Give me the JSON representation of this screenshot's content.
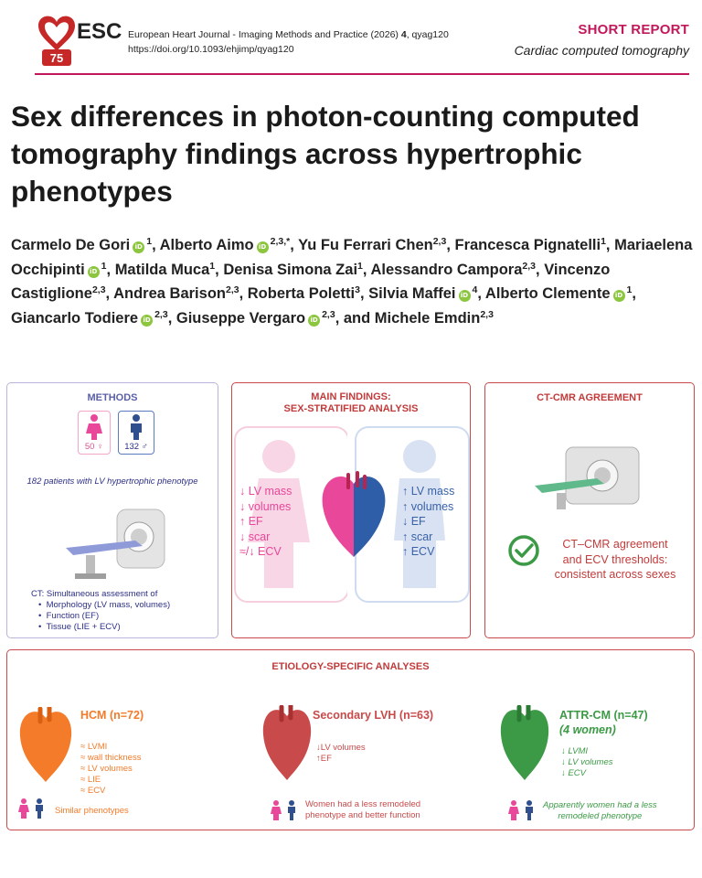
{
  "header": {
    "logo_text": "ESC",
    "logo_badge": "75",
    "journal": "European Heart Journal - Imaging Methods and Practice (2026)",
    "volume": "4",
    "article_id": ", qyag120",
    "doi": "https://doi.org/10.1093/ehjimp/qyag120",
    "report_type": "SHORT REPORT",
    "section": "Cardiac computed tomography",
    "accent_color": "#c2185b"
  },
  "title": "Sex differences in photon-counting computed tomography findings across hypertrophic phenotypes",
  "authors": [
    {
      "name": "Carmelo De Gori",
      "orcid": true,
      "aff": "1",
      "sep": ", "
    },
    {
      "name": "Alberto Aimo",
      "orcid": true,
      "aff": "2,3,*",
      "sep": ", "
    },
    {
      "name": "Yu Fu Ferrari Chen",
      "orcid": false,
      "aff": "2,3",
      "sep": ", "
    },
    {
      "name": "Francesca Pignatelli",
      "orcid": false,
      "aff": "1",
      "sep": ", "
    },
    {
      "name": "Mariaelena Occhipinti",
      "orcid": true,
      "aff": "1",
      "sep": ", "
    },
    {
      "name": "Matilda Muca",
      "orcid": false,
      "aff": "1",
      "sep": ", "
    },
    {
      "name": "Denisa Simona Zai",
      "orcid": false,
      "aff": "1",
      "sep": ", "
    },
    {
      "name": "Alessandro Campora",
      "orcid": false,
      "aff": "2,3",
      "sep": ", "
    },
    {
      "name": "Vincenzo Castiglione",
      "orcid": false,
      "aff": "2,3",
      "sep": ", "
    },
    {
      "name": "Andrea Barison",
      "orcid": false,
      "aff": "2,3",
      "sep": ", "
    },
    {
      "name": "Roberta Poletti",
      "orcid": false,
      "aff": "3",
      "sep": ", "
    },
    {
      "name": "Silvia Maffei",
      "orcid": true,
      "aff": "4",
      "sep": ", "
    },
    {
      "name": "Alberto Clemente",
      "orcid": true,
      "aff": "1",
      "sep": ", "
    },
    {
      "name": "Giancarlo Todiere",
      "orcid": true,
      "aff": "2,3",
      "sep": ", "
    },
    {
      "name": "Giuseppe Vergaro",
      "orcid": true,
      "aff": "2,3",
      "sep": ", and "
    },
    {
      "name": "Michele Emdin",
      "orcid": false,
      "aff": "2,3",
      "sep": ""
    }
  ],
  "orcid_label": "iD",
  "figure": {
    "methods": {
      "title": "METHODS",
      "female_count": "50 ♀",
      "male_count": "132 ♂",
      "cohort": "182 patients with LV hypertrophic phenotype",
      "ct_heading": "CT: Simultaneous assessment of",
      "bullets": [
        "Morphology (LV mass, volumes)",
        "Function (EF)",
        "Tissue (LIE + ECV)"
      ]
    },
    "findings": {
      "title_line1": "MAIN FINDINGS:",
      "title_line2": "SEX-STRATIFIED ANALYSIS",
      "female": [
        "↓ LV mass",
        "↓ volumes",
        "↑ EF",
        "↓ scar",
        "≈/↓ ECV"
      ],
      "male": [
        "↑ LV mass",
        "↑ volumes",
        "↓ EF",
        "↑ scar",
        "↑ ECV"
      ],
      "female_color": "#e8479a",
      "male_color": "#3a62a8"
    },
    "agreement": {
      "title": "CT-CMR AGREEMENT",
      "text_lines": [
        "CT–CMR agreement",
        "and ECV thresholds:",
        "consistent across sexes"
      ]
    },
    "etiology": {
      "title": "ETIOLOGY-SPECIFIC ANALYSES",
      "hcm": {
        "name": "HCM (n=72)",
        "items": [
          "≈ LVMI",
          "≈ wall thickness",
          "≈ LV volumes",
          "≈ LIE",
          "≈ ECV"
        ],
        "note": "Similar phenotypes",
        "color": "#f47b2a"
      },
      "lvh": {
        "name": "Secondary LVH (n=63)",
        "items": [
          "↓LV volumes",
          "↑EF"
        ],
        "note_line1": "Women had a less remodeled",
        "note_line2": "phenotype and better function",
        "color": "#c94a4a"
      },
      "attr": {
        "name": "ATTR-CM (n=47)",
        "subtitle": "(4 women)",
        "items": [
          "↓ LVMI",
          "↓ LV volumes",
          "↓ ECV"
        ],
        "note_line1": "Apparently women had a less",
        "note_line2": "remodeled phenotype",
        "color": "#3c9a46"
      }
    }
  }
}
